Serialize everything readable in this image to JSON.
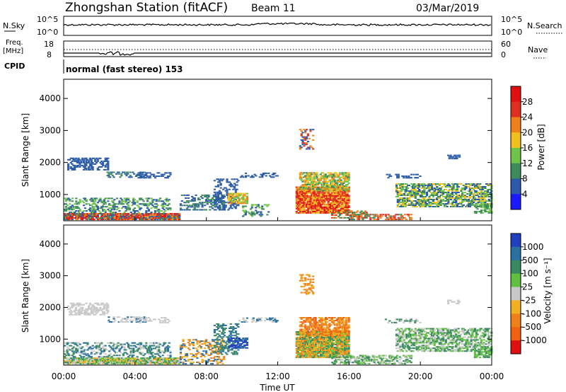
{
  "header": {
    "station": "Zhongshan Station (fitACF)",
    "beam": "Beam 11",
    "date": "03/Mar/2019"
  },
  "top_panels": {
    "nsky_label": "N.Sky",
    "nsky_ticks": [
      "10^5",
      "10^0"
    ],
    "nsearch_label": "N.Search",
    "nsearch_ticks": [
      "10^5",
      "10^0"
    ],
    "freq_label": "Freq.",
    "freq_unit": "[MHz]",
    "freq_ticks": [
      "18",
      "8"
    ],
    "nave_label": "Nave",
    "nave_ticks": [
      "60",
      "0"
    ],
    "cpid_label": "CPID",
    "cpid_value": "normal (fast stereo) 153"
  },
  "chart_data": [
    {
      "type": "heatmap",
      "name": "power",
      "ylabel": "Slant Range [km]",
      "ylim": [
        180,
        4600
      ],
      "yticks": [
        "1000",
        "2000",
        "3000",
        "4000"
      ],
      "colorbar_label": "Power [dB]",
      "colorbar_ticks": [
        "4",
        "8",
        "12",
        "16",
        "20",
        "24",
        "28"
      ],
      "colors": [
        "#1a1aff",
        "#2a5aa8",
        "#3d8a5a",
        "#6fc24a",
        "#f0c020",
        "#f08018",
        "#e03020",
        "#e01010"
      ]
    },
    {
      "type": "heatmap",
      "name": "velocity",
      "ylabel": "Slant Range [km]",
      "ylim": [
        180,
        4600
      ],
      "yticks": [
        "1000",
        "2000",
        "3000",
        "4000"
      ],
      "colorbar_label": "Velocity [m s⁻¹]",
      "colorbar_ticks": [
        "1000",
        "500",
        "100",
        "25",
        "-25",
        "-100",
        "-500",
        "-1000"
      ],
      "colors": [
        "#2040c0",
        "#2a70a0",
        "#3a8a60",
        "#60c040",
        "#c8c8c8",
        "#f0b020",
        "#f08018",
        "#f06010",
        "#e01010"
      ]
    }
  ],
  "xaxis": {
    "label": "Time UT",
    "ticks": [
      "00:00",
      "04:00",
      "08:00",
      "12:00",
      "16:00",
      "20:00",
      "00:00"
    ]
  }
}
